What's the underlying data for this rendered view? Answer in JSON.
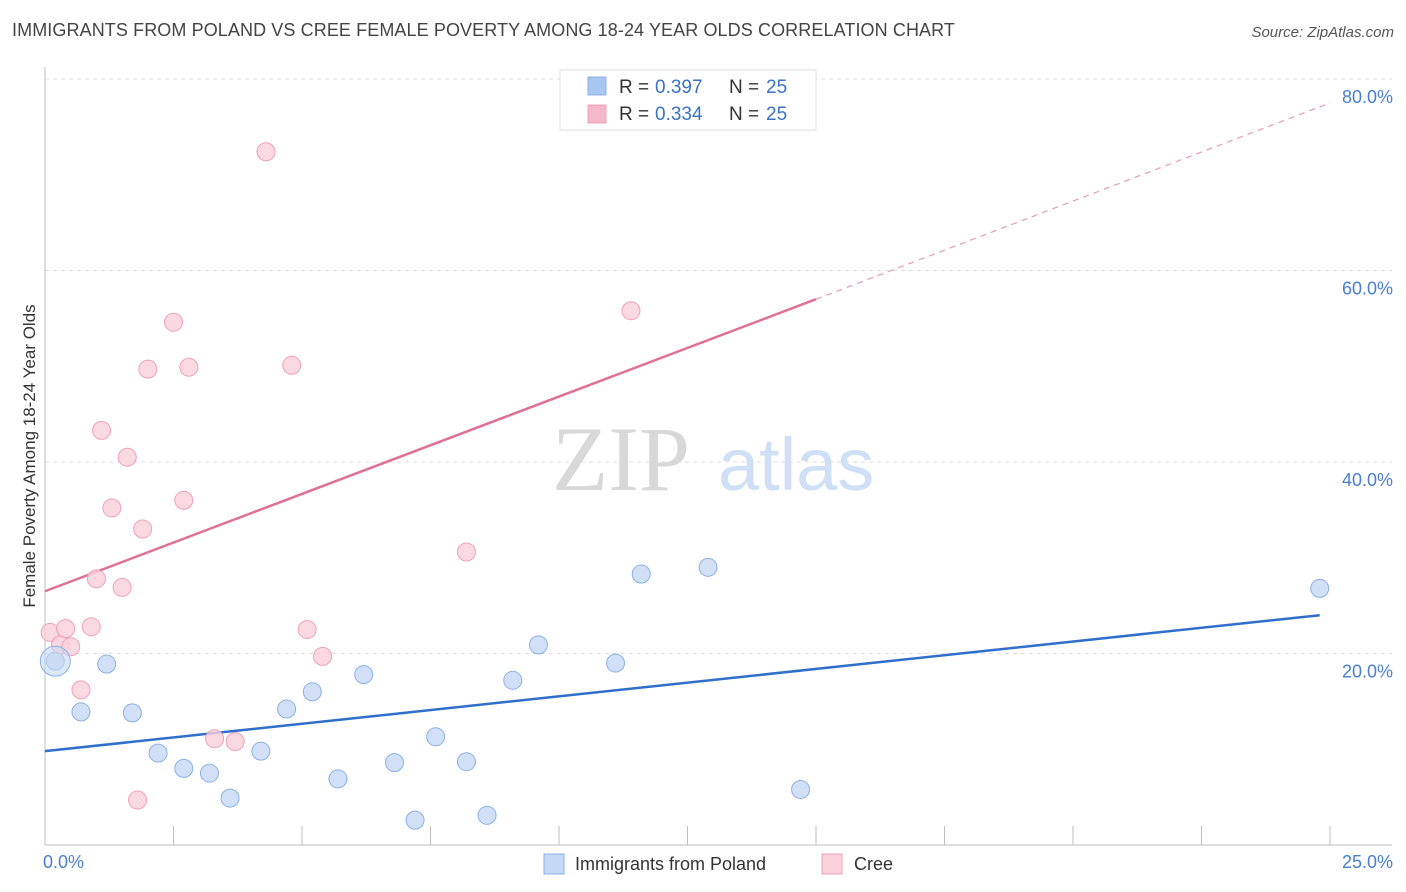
{
  "header": {
    "title": "IMMIGRANTS FROM POLAND VS CREE FEMALE POVERTY AMONG 18-24 YEAR OLDS CORRELATION CHART",
    "source": "Source: ZipAtlas.com"
  },
  "watermark": {
    "zip": "ZIP",
    "atlas": "atlas"
  },
  "legend": {
    "r_label": "R =",
    "n_label": "N =",
    "series": [
      {
        "r": "0.397",
        "n": "25",
        "color": "#a9c6f0"
      },
      {
        "r": "0.334",
        "n": "25",
        "color": "#f5b8ca"
      }
    ]
  },
  "bottom_legend": [
    "Immigrants from Poland",
    "Cree"
  ],
  "colors": {
    "blue_fill": "#c5d8f4",
    "blue_stroke": "#8ab0e6",
    "blue_line": "#2f6fcb",
    "pink_fill": "#f9d0dc",
    "pink_stroke": "#f0a0b8",
    "pink_line": "#e07096",
    "tick_text": "#4a7fd0"
  },
  "chart_data": {
    "type": "scatter",
    "title": "IMMIGRANTS FROM POLAND VS CREE FEMALE POVERTY AMONG 18-24 YEAR OLDS CORRELATION CHART",
    "xlabel": "",
    "ylabel": "Female Poverty Among 18-24 Year Olds",
    "xlim": [
      0,
      25
    ],
    "ylim": [
      0,
      80
    ],
    "x_tick_labels": [
      "0.0%",
      "25.0%"
    ],
    "y_ticks": [
      20,
      40,
      60,
      80
    ],
    "y_tick_labels": [
      "20.0%",
      "40.0%",
      "60.0%",
      "80.0%"
    ],
    "grid": true,
    "legend_position": "top-center",
    "series": [
      {
        "name": "Immigrants from Poland",
        "color": "#a9c6f0",
        "points": [
          [
            0.2,
            19.2
          ],
          [
            0.7,
            13.9
          ],
          [
            1.2,
            18.9
          ],
          [
            1.7,
            13.8
          ],
          [
            2.2,
            9.6
          ],
          [
            2.7,
            8.0
          ],
          [
            3.2,
            7.5
          ],
          [
            3.6,
            4.9
          ],
          [
            4.2,
            9.8
          ],
          [
            4.7,
            14.2
          ],
          [
            5.2,
            16.0
          ],
          [
            5.7,
            6.9
          ],
          [
            6.2,
            17.8
          ],
          [
            6.8,
            8.6
          ],
          [
            7.2,
            2.6
          ],
          [
            7.6,
            11.3
          ],
          [
            8.2,
            8.7
          ],
          [
            8.6,
            3.1
          ],
          [
            9.1,
            17.2
          ],
          [
            9.6,
            20.9
          ],
          [
            11.1,
            19.0
          ],
          [
            11.6,
            28.3
          ],
          [
            12.9,
            29.0
          ],
          [
            14.7,
            5.8
          ],
          [
            24.8,
            26.8
          ]
        ],
        "trend": {
          "x": [
            0,
            24.8
          ],
          "y": [
            9.8,
            24.0
          ]
        }
      },
      {
        "name": "Cree",
        "color": "#f5b8ca",
        "points": [
          [
            0.1,
            22.2
          ],
          [
            0.3,
            20.9
          ],
          [
            0.4,
            22.6
          ],
          [
            0.5,
            20.7
          ],
          [
            0.7,
            16.2
          ],
          [
            0.9,
            22.8
          ],
          [
            1.0,
            27.8
          ],
          [
            1.1,
            43.3
          ],
          [
            1.3,
            35.2
          ],
          [
            1.5,
            26.9
          ],
          [
            1.6,
            40.5
          ],
          [
            1.8,
            4.7
          ],
          [
            1.9,
            33.0
          ],
          [
            2.0,
            49.7
          ],
          [
            2.5,
            54.6
          ],
          [
            2.7,
            36.0
          ],
          [
            2.8,
            49.9
          ],
          [
            3.3,
            11.1
          ],
          [
            3.7,
            10.8
          ],
          [
            4.3,
            72.4
          ],
          [
            4.8,
            50.1
          ],
          [
            5.1,
            22.5
          ],
          [
            5.4,
            19.7
          ],
          [
            8.2,
            30.6
          ],
          [
            11.4,
            55.8
          ]
        ],
        "trend": {
          "x": [
            0,
            15.0
          ],
          "y": [
            26.5,
            57.0
          ]
        },
        "trend_extension": {
          "x": [
            15.0,
            25.0
          ],
          "y": [
            57.0,
            77.5
          ]
        }
      }
    ]
  }
}
